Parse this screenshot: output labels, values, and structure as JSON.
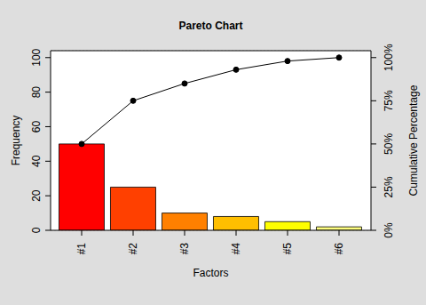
{
  "chart_data": {
    "type": "bar",
    "title": "Pareto Chart",
    "x_label": "Factors",
    "y_label": "Frequency",
    "y2_label": "Cumulative Percentage",
    "categories": [
      "#1",
      "#2",
      "#3",
      "#4",
      "#5",
      "#6"
    ],
    "series": [
      {
        "name": "Frequency",
        "type": "bar",
        "colors": [
          "#FF0000",
          "#FF4000",
          "#FF8000",
          "#FFBF00",
          "#FFFF00",
          "#FFFF80"
        ],
        "values": [
          50,
          25,
          10,
          8,
          5,
          2
        ]
      },
      {
        "name": "Cumulative Percentage",
        "type": "line",
        "axis": "y2",
        "color": "#000000",
        "marker": "circle",
        "values": [
          50,
          75,
          85,
          93,
          98,
          100
        ]
      }
    ],
    "ylim": [
      0,
      104
    ],
    "yticks": [
      0,
      20,
      40,
      60,
      80,
      100
    ],
    "y2lim": [
      0,
      104
    ],
    "y2ticks": [
      {
        "value": 0,
        "label": "0%"
      },
      {
        "value": 25,
        "label": "25%"
      },
      {
        "value": 50,
        "label": "50%"
      },
      {
        "value": 75,
        "label": "75%"
      },
      {
        "value": 100,
        "label": "100%"
      }
    ],
    "grid": true
  }
}
